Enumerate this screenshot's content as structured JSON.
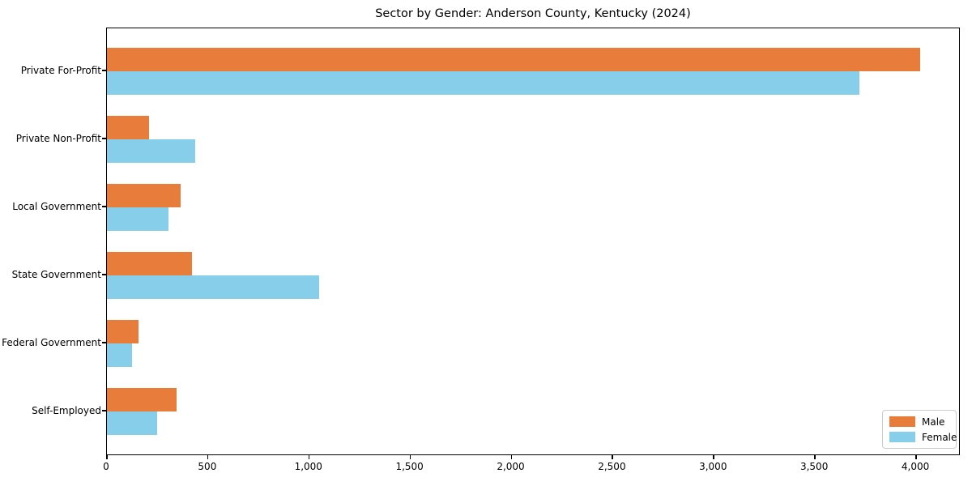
{
  "chart_data": {
    "type": "bar",
    "orientation": "horizontal",
    "title": "Sector by Gender: Anderson County, Kentucky (2024)",
    "xlabel": "",
    "ylabel": "",
    "categories": [
      "Private For-Profit",
      "Private Non-Profit",
      "Local Government",
      "State Government",
      "Federal Government",
      "Self-Employed"
    ],
    "series": [
      {
        "name": "Male",
        "color": "#E87C3B",
        "values": [
          4020,
          210,
          365,
          420,
          155,
          345
        ]
      },
      {
        "name": "Female",
        "color": "#87CEEB",
        "values": [
          3720,
          435,
          305,
          1050,
          125,
          250
        ]
      }
    ],
    "xlim": [
      0,
      4220
    ],
    "xticks": [
      0,
      500,
      1000,
      1500,
      2000,
      2500,
      3000,
      3500,
      4000
    ],
    "xtick_labels": [
      "0",
      "500",
      "1,000",
      "1,500",
      "2,000",
      "2,500",
      "3,000",
      "3,500",
      "4,000"
    ],
    "grid": false,
    "legend_position": "lower right",
    "plot_background": "#ffffff",
    "border_color": "#000000"
  }
}
